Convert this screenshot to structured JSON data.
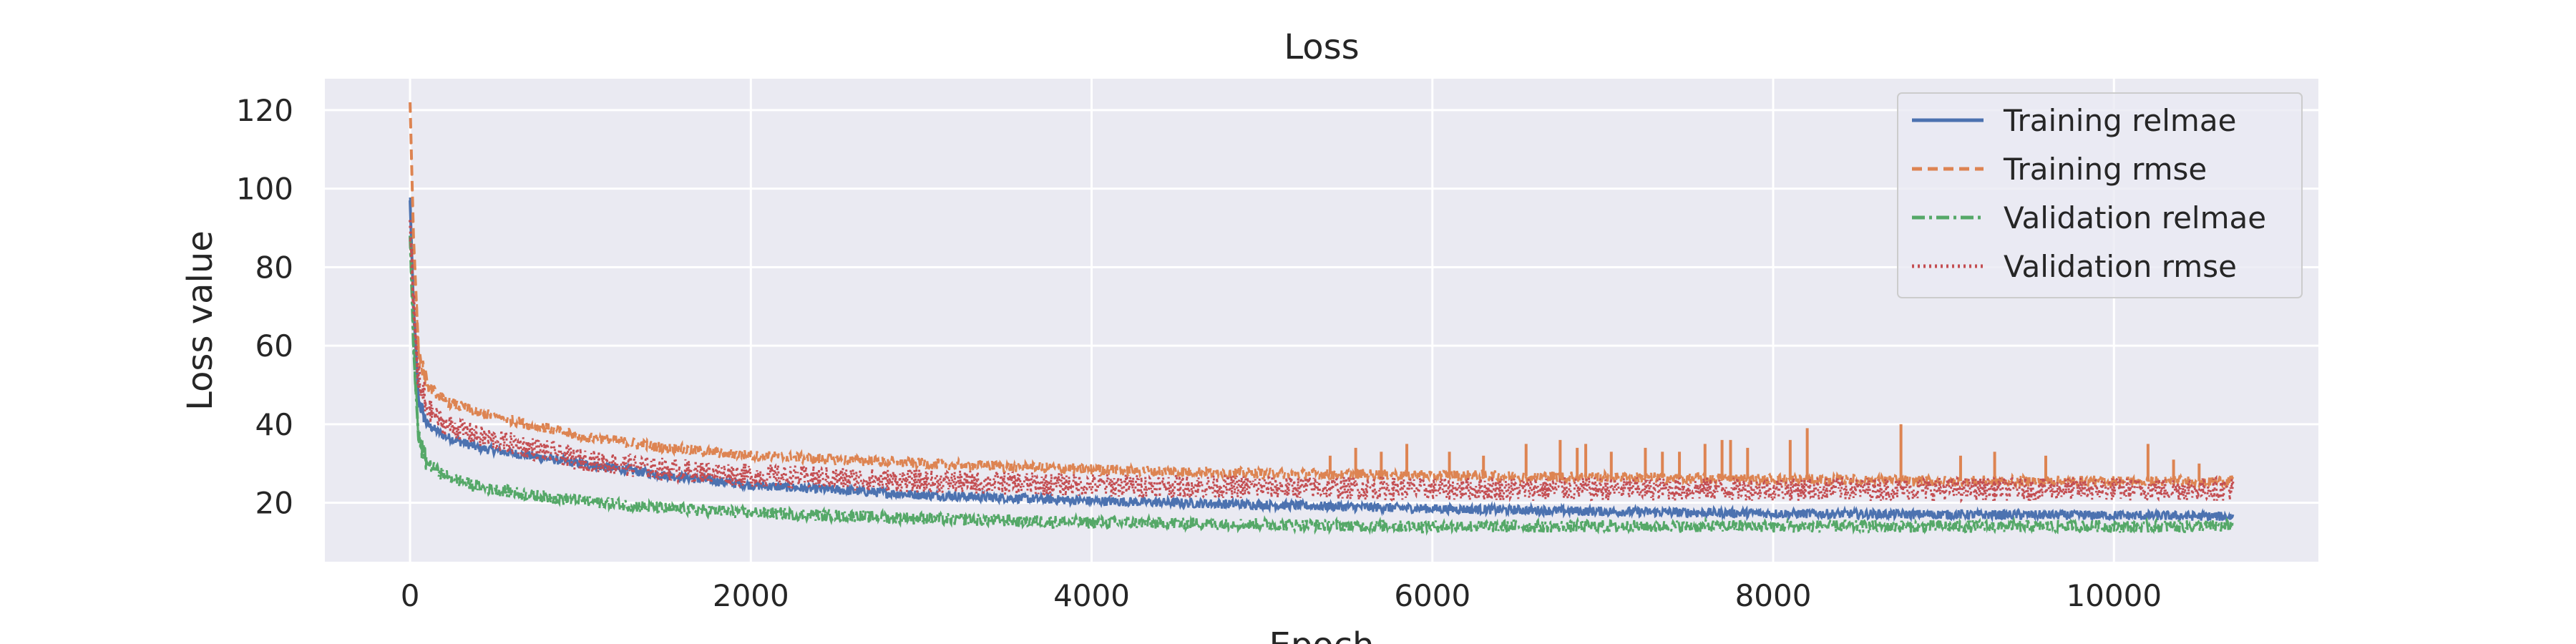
{
  "chart_data": {
    "type": "line",
    "title": "Loss",
    "xlabel": "Epoch",
    "ylabel": "Loss value",
    "xlim": [
      -500,
      11200
    ],
    "ylim": [
      5,
      128
    ],
    "x_ticks": [
      0,
      2000,
      4000,
      6000,
      8000,
      10000
    ],
    "y_ticks": [
      20,
      40,
      60,
      80,
      100,
      120
    ],
    "grid": true,
    "legend_position": "top-right",
    "x_max": 10700,
    "series": [
      {
        "name": "Training relmae",
        "color": "#4C72B0",
        "dash": "solid",
        "points": [
          [
            0,
            97
          ],
          [
            20,
            70
          ],
          [
            50,
            46
          ],
          [
            100,
            40
          ],
          [
            200,
            37
          ],
          [
            400,
            34
          ],
          [
            700,
            32
          ],
          [
            1000,
            30
          ],
          [
            1500,
            27
          ],
          [
            2000,
            24.5
          ],
          [
            3000,
            22
          ],
          [
            4000,
            20.5
          ],
          [
            5000,
            19.5
          ],
          [
            6000,
            18.5
          ],
          [
            7000,
            17.8
          ],
          [
            8000,
            17.3
          ],
          [
            9000,
            17
          ],
          [
            10000,
            16.8
          ],
          [
            10700,
            16.5
          ]
        ],
        "noise": 1.2,
        "spikes": []
      },
      {
        "name": "Training rmse",
        "color": "#DD8452",
        "dash": "dashed",
        "points": [
          [
            0,
            122
          ],
          [
            20,
            88
          ],
          [
            50,
            58
          ],
          [
            100,
            50
          ],
          [
            200,
            46
          ],
          [
            400,
            43
          ],
          [
            700,
            40
          ],
          [
            1000,
            37
          ],
          [
            1500,
            34
          ],
          [
            2000,
            32
          ],
          [
            3000,
            30
          ],
          [
            4000,
            28.5
          ],
          [
            5000,
            27.5
          ],
          [
            6000,
            27
          ],
          [
            7000,
            26.5
          ],
          [
            8000,
            26
          ],
          [
            9000,
            25.5
          ],
          [
            10000,
            25.5
          ],
          [
            10700,
            25.5
          ]
        ],
        "noise": 1.4,
        "spikes": [
          [
            5400,
            32
          ],
          [
            5550,
            34
          ],
          [
            5700,
            33
          ],
          [
            5850,
            35
          ],
          [
            6100,
            33
          ],
          [
            6300,
            32
          ],
          [
            6550,
            35
          ],
          [
            6750,
            36
          ],
          [
            6850,
            34
          ],
          [
            6900,
            35
          ],
          [
            7050,
            33
          ],
          [
            7250,
            34
          ],
          [
            7350,
            33
          ],
          [
            7450,
            33
          ],
          [
            7600,
            35
          ],
          [
            7700,
            36
          ],
          [
            7750,
            36
          ],
          [
            7850,
            34
          ],
          [
            8100,
            36
          ],
          [
            8200,
            39
          ],
          [
            8750,
            40
          ],
          [
            9100,
            32
          ],
          [
            9300,
            33
          ],
          [
            9600,
            32
          ],
          [
            10200,
            35
          ],
          [
            10350,
            31
          ],
          [
            10500,
            30
          ]
        ]
      },
      {
        "name": "Validation relmae",
        "color": "#55A868",
        "dash": "dashdot",
        "points": [
          [
            0,
            88
          ],
          [
            20,
            60
          ],
          [
            50,
            36
          ],
          [
            100,
            30
          ],
          [
            200,
            27
          ],
          [
            400,
            24
          ],
          [
            700,
            22
          ],
          [
            1000,
            20.5
          ],
          [
            1500,
            18.5
          ],
          [
            2000,
            17.5
          ],
          [
            3000,
            16
          ],
          [
            4000,
            15
          ],
          [
            5000,
            14.5
          ],
          [
            6000,
            14
          ],
          [
            7000,
            14
          ],
          [
            8000,
            14
          ],
          [
            9000,
            14
          ],
          [
            10000,
            14
          ],
          [
            10700,
            14
          ]
        ],
        "noise": 1.6,
        "spikes": []
      },
      {
        "name": "Validation rmse",
        "color": "#C44E52",
        "dash": "dotted",
        "points": [
          [
            0,
            92
          ],
          [
            20,
            70
          ],
          [
            50,
            50
          ],
          [
            100,
            44
          ],
          [
            200,
            40
          ],
          [
            400,
            37
          ],
          [
            700,
            34
          ],
          [
            1000,
            31
          ],
          [
            1500,
            28.5
          ],
          [
            2000,
            27
          ],
          [
            3000,
            25.5
          ],
          [
            4000,
            24.5
          ],
          [
            5000,
            24
          ],
          [
            6000,
            23.5
          ],
          [
            7000,
            23.5
          ],
          [
            8000,
            23.5
          ],
          [
            9000,
            23.5
          ],
          [
            10000,
            23.5
          ],
          [
            10700,
            23.5
          ]
        ],
        "noise": 3.0,
        "spikes": []
      }
    ]
  }
}
